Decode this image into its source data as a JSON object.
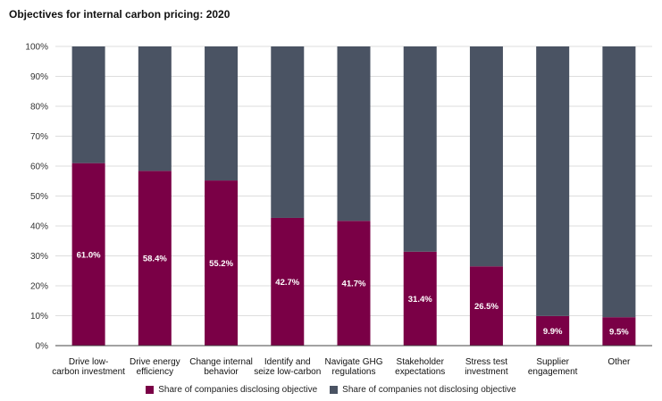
{
  "title": "Objectives for internal carbon pricing: 2020",
  "colors": {
    "disclosing": "#7a0046",
    "not_disclosing": "#4a5363",
    "grid": "#dddddd",
    "axis": "#444444"
  },
  "chart_data": {
    "type": "bar",
    "stacked": true,
    "categories": [
      [
        "Drive low-",
        "carbon investment"
      ],
      [
        "Drive energy",
        "efficiency"
      ],
      [
        "Change internal",
        "behavior"
      ],
      [
        "Identify and",
        "seize low-carbon"
      ],
      [
        "Navigate GHG",
        "regulations"
      ],
      [
        "Stakeholder",
        "expectations"
      ],
      [
        "Stress test",
        "investment"
      ],
      [
        "Supplier",
        "engagement"
      ],
      [
        "Other"
      ]
    ],
    "series": [
      {
        "name": "Share of companies disclosing objective",
        "values": [
          61.0,
          58.4,
          55.2,
          42.7,
          41.7,
          31.4,
          26.5,
          9.9,
          9.5
        ]
      },
      {
        "name": "Share of companies not disclosing objective",
        "values": [
          39.0,
          41.6,
          44.8,
          57.3,
          58.3,
          68.6,
          73.5,
          90.1,
          90.5
        ]
      }
    ],
    "data_labels": [
      "61.0%",
      "58.4%",
      "55.2%",
      "42.7%",
      "41.7%",
      "31.4%",
      "26.5%",
      "9.9%",
      "9.5%"
    ],
    "yticks": [
      "0%",
      "10%",
      "20%",
      "30%",
      "40%",
      "50%",
      "60%",
      "70%",
      "80%",
      "90%",
      "100%"
    ],
    "ylim": [
      0,
      100
    ],
    "grid": true,
    "legend_position": "bottom"
  },
  "legend": [
    {
      "label": "Share of companies disclosing objective"
    },
    {
      "label": "Share of companies not disclosing objective"
    }
  ]
}
